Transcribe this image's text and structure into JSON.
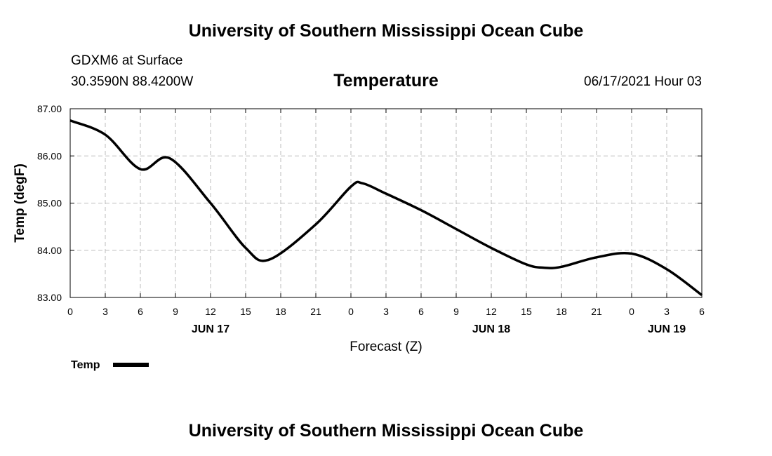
{
  "header": {
    "top_title": "University of Southern Mississippi Ocean Cube",
    "station": "GDXM6 at Surface",
    "coords": "30.3590N  88.4200W",
    "datetime": "06/17/2021 Hour 03",
    "bottom_title": "University of Southern Mississippi Ocean Cube"
  },
  "chart_data": {
    "type": "line",
    "title": "Temperature",
    "xlabel": "Forecast (Z)",
    "ylabel": "Temp (degF)",
    "ylim": [
      83.0,
      87.0
    ],
    "xlim": [
      0,
      54
    ],
    "y_ticks": [
      "83.00",
      "84.00",
      "85.00",
      "86.00",
      "87.00"
    ],
    "x_ticks": [
      "0",
      "3",
      "6",
      "9",
      "12",
      "15",
      "18",
      "21",
      "0",
      "3",
      "6",
      "9",
      "12",
      "15",
      "18",
      "21",
      "0",
      "3",
      "6"
    ],
    "date_labels": [
      {
        "label": "JUN 17",
        "hour": 12
      },
      {
        "label": "JUN 18",
        "hour": 36
      },
      {
        "label": "JUN 19",
        "hour": 51
      }
    ],
    "grid": true,
    "legend": {
      "position": "bottom-left",
      "entries": [
        "Temp"
      ]
    },
    "series": [
      {
        "name": "Temp",
        "color": "#000000",
        "x": [
          0,
          3,
          6,
          8.5,
          12,
          15,
          17,
          21,
          24,
          25,
          27,
          30,
          33,
          36,
          39,
          40.5,
          42,
          45,
          48,
          51,
          54
        ],
        "y": [
          86.75,
          86.45,
          85.72,
          85.95,
          85.0,
          84.05,
          83.8,
          84.55,
          85.35,
          85.42,
          85.2,
          84.85,
          84.45,
          84.05,
          83.7,
          83.63,
          83.65,
          83.85,
          83.93,
          83.6,
          83.05
        ]
      }
    ]
  }
}
